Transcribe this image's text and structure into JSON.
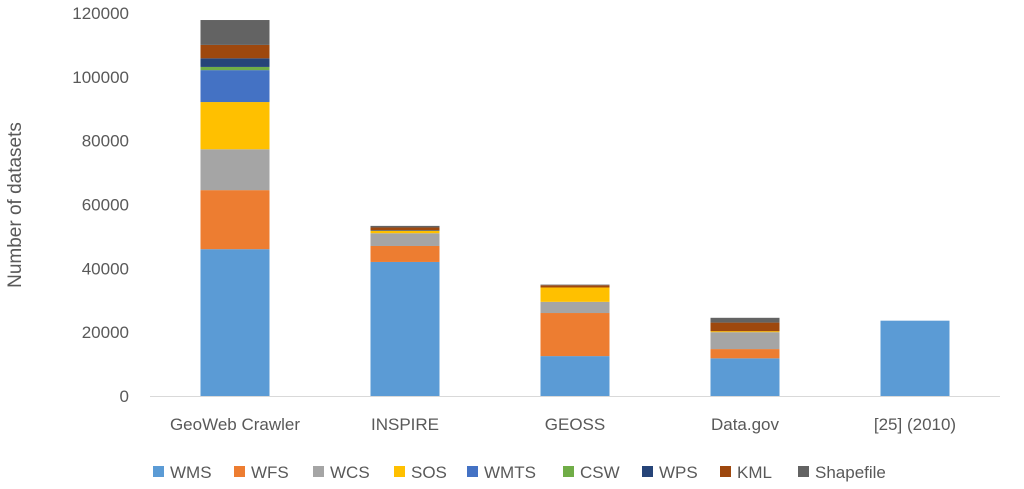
{
  "chart_data": {
    "type": "bar",
    "stacked": true,
    "title": "",
    "xlabel": "",
    "ylabel": "Number of datasets",
    "ylim": [
      0,
      120000
    ],
    "yticks": [
      "0",
      "20000",
      "40000",
      "60000",
      "80000",
      "100000",
      "120000"
    ],
    "grid": false,
    "legend_position": "bottom",
    "categories": [
      "GeoWeb Crawler",
      "INSPIRE",
      "GEOSS",
      "Data.gov",
      "[25] (2010)"
    ],
    "series": [
      {
        "name": "WMS",
        "color": "#5B9BD5",
        "values": [
          46000,
          42000,
          12500,
          11800,
          23600
        ]
      },
      {
        "name": "WFS",
        "color": "#ED7D31",
        "values": [
          18500,
          5000,
          13500,
          2900,
          0
        ]
      },
      {
        "name": "WCS",
        "color": "#A5A5A5",
        "values": [
          12800,
          4000,
          3500,
          5300,
          0
        ]
      },
      {
        "name": "SOS",
        "color": "#FFC000",
        "values": [
          14800,
          800,
          4500,
          300,
          0
        ]
      },
      {
        "name": "WMTS",
        "color": "#4472C4",
        "values": [
          10000,
          0,
          0,
          0,
          0
        ]
      },
      {
        "name": "CSW",
        "color": "#70AD47",
        "values": [
          1000,
          0,
          0,
          0,
          0
        ]
      },
      {
        "name": "WPS",
        "color": "#264478",
        "values": [
          2700,
          200,
          0,
          0,
          0
        ]
      },
      {
        "name": "KML",
        "color": "#9E480E",
        "values": [
          4200,
          800,
          700,
          2700,
          0
        ]
      },
      {
        "name": "Shapefile",
        "color": "#636363",
        "values": [
          7800,
          500,
          200,
          1500,
          0
        ]
      }
    ]
  }
}
